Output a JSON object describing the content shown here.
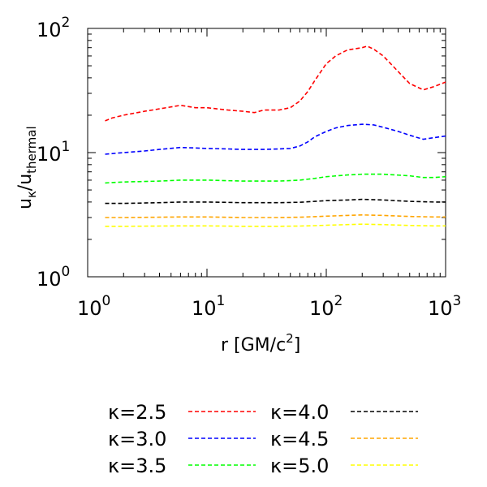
{
  "chart_data": {
    "type": "line",
    "xscale": "log",
    "yscale": "log",
    "xlim": [
      1,
      1000
    ],
    "ylim": [
      1,
      100
    ],
    "xticks": [
      {
        "value": 1,
        "base": "10",
        "exp": "0"
      },
      {
        "value": 10,
        "base": "10",
        "exp": "1"
      },
      {
        "value": 100,
        "base": "10",
        "exp": "2"
      },
      {
        "value": 1000,
        "base": "10",
        "exp": "3"
      }
    ],
    "yticks": [
      {
        "value": 1,
        "base": "10",
        "exp": "0"
      },
      {
        "value": 10,
        "base": "10",
        "exp": "1"
      },
      {
        "value": 100,
        "base": "10",
        "exp": "2"
      }
    ],
    "xlabel": {
      "main": "r [GM/c",
      "sup": "2",
      "close": "]"
    },
    "ylabel": {
      "u1": "u",
      "sub1": "κ",
      "slash": "/u",
      "sub2": "thermal"
    },
    "grid": false,
    "legend_position": "below-plot",
    "series": [
      {
        "name": "κ=2.5",
        "color": "#ff0000",
        "x": [
          1.4,
          1.6,
          2,
          3,
          4,
          6,
          8,
          10,
          15,
          20,
          25,
          30,
          40,
          50,
          60,
          70,
          80,
          100,
          120,
          150,
          200,
          220,
          250,
          300,
          400,
          500,
          650,
          800,
          1000
        ],
        "y": [
          18,
          19,
          20,
          21.5,
          22.5,
          24,
          23,
          23,
          22,
          21.5,
          21,
          22,
          22,
          23,
          26,
          31,
          38,
          52,
          60,
          67,
          70,
          72,
          68,
          60,
          45,
          36,
          32,
          34,
          37
        ]
      },
      {
        "name": "κ=3.0",
        "color": "#0000ff",
        "x": [
          1.4,
          2,
          3,
          4,
          6,
          8,
          10,
          15,
          20,
          25,
          30,
          40,
          50,
          60,
          70,
          80,
          100,
          120,
          150,
          200,
          250,
          300,
          400,
          500,
          650,
          800,
          1000
        ],
        "y": [
          9.7,
          10.0,
          10.3,
          10.6,
          11.0,
          10.9,
          10.8,
          10.7,
          10.6,
          10.6,
          10.6,
          10.7,
          10.8,
          11.3,
          12.2,
          13.4,
          14.8,
          15.8,
          16.5,
          16.9,
          16.7,
          16.0,
          14.8,
          13.8,
          12.8,
          13.2,
          13.6
        ]
      },
      {
        "name": "κ=3.5",
        "color": "#00ff00",
        "x": [
          1.4,
          2,
          4,
          6,
          10,
          20,
          40,
          60,
          80,
          100,
          150,
          200,
          300,
          500,
          650,
          800,
          1000
        ],
        "y": [
          5.7,
          5.8,
          5.9,
          6.0,
          6.0,
          5.9,
          5.9,
          6.0,
          6.2,
          6.4,
          6.6,
          6.7,
          6.7,
          6.5,
          6.3,
          6.3,
          6.4
        ]
      },
      {
        "name": "κ=4.0",
        "color": "#000000",
        "x": [
          1.4,
          2,
          4,
          6,
          10,
          20,
          40,
          60,
          80,
          100,
          150,
          200,
          300,
          500,
          800,
          1000
        ],
        "y": [
          3.9,
          3.9,
          3.95,
          4.0,
          4.0,
          3.95,
          3.95,
          3.98,
          4.05,
          4.1,
          4.15,
          4.2,
          4.15,
          4.05,
          4.0,
          4.0
        ]
      },
      {
        "name": "κ=4.5",
        "color": "#ffa500",
        "x": [
          1.4,
          2,
          4,
          6,
          10,
          20,
          40,
          60,
          80,
          100,
          150,
          200,
          300,
          500,
          800,
          1000
        ],
        "y": [
          3.0,
          3.0,
          3.02,
          3.03,
          3.03,
          3.0,
          3.0,
          3.02,
          3.05,
          3.08,
          3.12,
          3.15,
          3.12,
          3.06,
          3.03,
          3.03
        ]
      },
      {
        "name": "κ=5.0",
        "color": "#ffff00",
        "x": [
          1.4,
          2,
          4,
          6,
          10,
          20,
          40,
          60,
          80,
          100,
          150,
          200,
          300,
          500,
          800,
          1000
        ],
        "y": [
          2.55,
          2.55,
          2.56,
          2.57,
          2.57,
          2.55,
          2.55,
          2.56,
          2.58,
          2.6,
          2.63,
          2.65,
          2.63,
          2.59,
          2.57,
          2.57
        ]
      }
    ]
  }
}
